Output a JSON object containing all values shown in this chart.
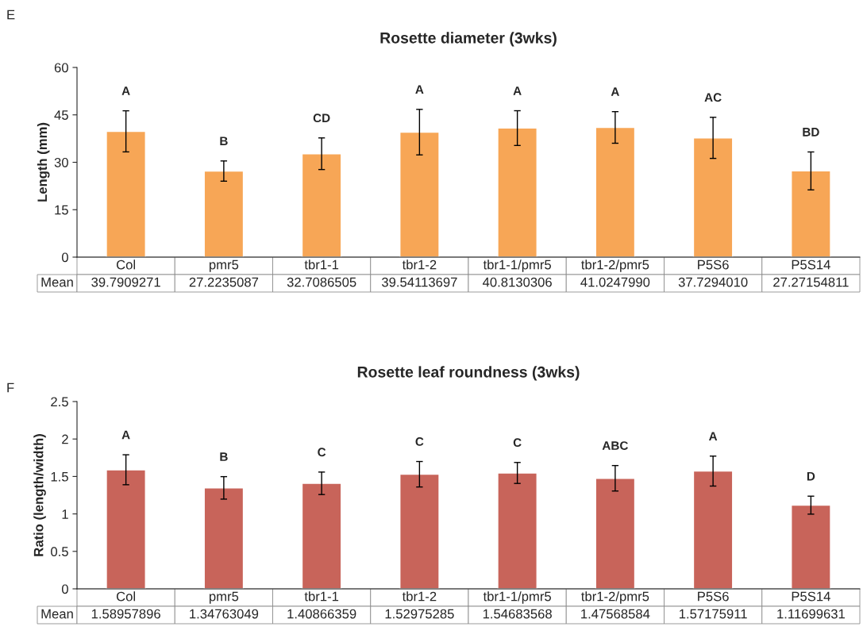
{
  "chart_data": [
    {
      "type": "bar",
      "title": "Rosette diameter (3wks)",
      "ylabel": "Length (mm)",
      "categories": [
        "Col",
        "pmr5",
        "tbr1-1",
        "tbr1-2",
        "tbr1-1/pmr5",
        "tbr1-2/pmr5",
        "P5S6",
        "P5S14"
      ],
      "values": [
        39.7909271,
        27.2235087,
        32.7086505,
        39.54113697,
        40.8130306,
        41.024799,
        37.729401,
        27.27154811
      ],
      "value_labels": [
        "39.7909271",
        "27.2235087",
        "32.7086505",
        "39.54113697",
        "40.8130306",
        "41.0247990",
        "37.7294010",
        "27.27154811"
      ],
      "errors": [
        6.5,
        3.2,
        5,
        7.2,
        5.5,
        5,
        6.5,
        6
      ],
      "color": "#f7a656",
      "ylim": [
        0,
        60
      ],
      "yticks": [
        0,
        15,
        30,
        45,
        60
      ],
      "grid": false,
      "annotations": [
        "E",
        "Mean",
        "A",
        "B",
        "CD",
        "A",
        "A",
        "A",
        "AC",
        "BD"
      ]
    },
    {
      "type": "bar",
      "title": "Rosette leaf roundness (3wks)",
      "ylabel": "Ratio (length/width)",
      "categories": [
        "Col",
        "pmr5",
        "tbr1-1",
        "tbr1-2",
        "tbr1-1/pmr5",
        "tbr1-2/pmr5",
        "P5S6",
        "P5S14"
      ],
      "values": [
        1.58957896,
        1.34763049,
        1.40866359,
        1.52975285,
        1.54683568,
        1.47568584,
        1.57175911,
        1.11699631
      ],
      "value_labels": [
        "1.58957896",
        "1.34763049",
        "1.40866359",
        "1.52975285",
        "1.54683568",
        "1.47568584",
        "1.57175911",
        "1.11699631"
      ],
      "errors": [
        0.2,
        0.15,
        0.15,
        0.17,
        0.14,
        0.17,
        0.2,
        0.12
      ],
      "color": "#c8645a",
      "ylim": [
        0,
        2.5
      ],
      "yticks": [
        0,
        0.5,
        1,
        1.5,
        2,
        2.5
      ],
      "grid": false,
      "annotations": [
        "F",
        "Mean",
        "A",
        "B",
        "C",
        "C",
        "C",
        "ABC",
        "A",
        "D"
      ]
    }
  ]
}
